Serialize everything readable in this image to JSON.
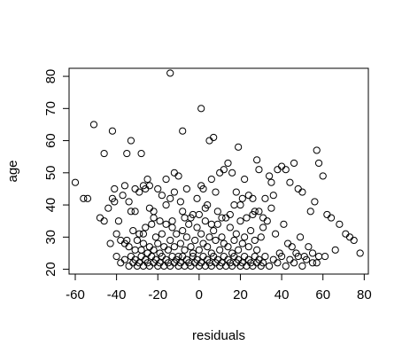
{
  "chart_data": {
    "type": "scatter",
    "title": "",
    "xlabel": "residuals",
    "ylabel": "age",
    "xlim": [
      -63,
      82
    ],
    "ylim": [
      18.5,
      82.5
    ],
    "xticks": [
      -60,
      -40,
      -20,
      0,
      20,
      40,
      60,
      80
    ],
    "yticks": [
      20,
      30,
      40,
      50,
      60,
      70,
      80
    ],
    "grid": false,
    "legend": "none",
    "marker": "open-circle",
    "points": [
      [
        -14,
        81
      ],
      [
        1,
        70
      ],
      [
        -51,
        65
      ],
      [
        -42,
        63
      ],
      [
        -8,
        63
      ],
      [
        5,
        60
      ],
      [
        -33,
        60
      ],
      [
        7,
        61
      ],
      [
        -46,
        56
      ],
      [
        -35,
        56
      ],
      [
        -28,
        56
      ],
      [
        19,
        58
      ],
      [
        -60,
        47
      ],
      [
        -56,
        42
      ],
      [
        -54,
        42
      ],
      [
        -44,
        39
      ],
      [
        -42,
        42
      ],
      [
        -41,
        45
      ],
      [
        -37,
        43
      ],
      [
        -36,
        46
      ],
      [
        -34,
        41
      ],
      [
        -33,
        38
      ],
      [
        -31,
        45
      ],
      [
        -31,
        38
      ],
      [
        -29,
        44
      ],
      [
        -27,
        46
      ],
      [
        -26,
        45
      ],
      [
        -24,
        46
      ],
      [
        -24,
        39
      ],
      [
        -22,
        38
      ],
      [
        -20,
        45
      ],
      [
        -18,
        43
      ],
      [
        -16,
        48
      ],
      [
        -14,
        42
      ],
      [
        -12,
        50
      ],
      [
        -12,
        44
      ],
      [
        -10,
        49
      ],
      [
        -8,
        38
      ],
      [
        -6,
        45
      ],
      [
        -3,
        37
      ],
      [
        -1,
        42
      ],
      [
        1,
        46
      ],
      [
        2,
        45
      ],
      [
        4,
        40
      ],
      [
        6,
        48
      ],
      [
        8,
        44
      ],
      [
        10,
        50
      ],
      [
        12,
        51
      ],
      [
        14,
        53
      ],
      [
        16,
        50
      ],
      [
        18,
        44
      ],
      [
        20,
        40
      ],
      [
        22,
        48
      ],
      [
        24,
        43
      ],
      [
        26,
        42
      ],
      [
        28,
        54
      ],
      [
        29,
        51
      ],
      [
        32,
        42
      ],
      [
        34,
        49
      ],
      [
        35,
        47
      ],
      [
        36,
        43
      ],
      [
        38,
        51
      ],
      [
        40,
        52
      ],
      [
        42,
        51
      ],
      [
        44,
        47
      ],
      [
        46,
        53
      ],
      [
        48,
        45
      ],
      [
        50,
        44
      ],
      [
        54,
        38
      ],
      [
        56,
        41
      ],
      [
        57,
        57
      ],
      [
        58,
        53
      ],
      [
        60,
        49
      ],
      [
        62,
        37
      ],
      [
        64,
        36
      ],
      [
        68,
        34
      ],
      [
        71,
        31
      ],
      [
        73,
        30
      ],
      [
        75,
        29
      ],
      [
        78,
        25
      ],
      [
        -48,
        36
      ],
      [
        -46,
        35
      ],
      [
        -43,
        28
      ],
      [
        -40,
        31
      ],
      [
        -38,
        29
      ],
      [
        -36,
        28
      ],
      [
        -35,
        29
      ],
      [
        -34,
        27
      ],
      [
        -32,
        32
      ],
      [
        -31,
        26
      ],
      [
        -30,
        29
      ],
      [
        -29,
        31
      ],
      [
        -28,
        26
      ],
      [
        -27,
        28
      ],
      [
        -26,
        33
      ],
      [
        -25,
        25
      ],
      [
        -24,
        27
      ],
      [
        -23,
        34
      ],
      [
        -22,
        26
      ],
      [
        -21,
        30
      ],
      [
        -20,
        28
      ],
      [
        -19,
        25
      ],
      [
        -18,
        31
      ],
      [
        -17,
        27
      ],
      [
        -16,
        34
      ],
      [
        -15,
        26
      ],
      [
        -14,
        29
      ],
      [
        -13,
        35
      ],
      [
        -12,
        27
      ],
      [
        -11,
        31
      ],
      [
        -10,
        24
      ],
      [
        -9,
        28
      ],
      [
        -8,
        32
      ],
      [
        -7,
        26
      ],
      [
        -6,
        30
      ],
      [
        -5,
        34
      ],
      [
        -4,
        27
      ],
      [
        -3,
        25
      ],
      [
        -2,
        29
      ],
      [
        -1,
        33
      ],
      [
        0,
        26
      ],
      [
        1,
        31
      ],
      [
        2,
        28
      ],
      [
        3,
        35
      ],
      [
        4,
        27
      ],
      [
        5,
        30
      ],
      [
        6,
        25
      ],
      [
        7,
        32
      ],
      [
        8,
        29
      ],
      [
        9,
        34
      ],
      [
        10,
        26
      ],
      [
        11,
        30
      ],
      [
        12,
        28
      ],
      [
        13,
        36
      ],
      [
        14,
        27
      ],
      [
        15,
        33
      ],
      [
        16,
        25
      ],
      [
        17,
        29
      ],
      [
        18,
        31
      ],
      [
        19,
        26
      ],
      [
        20,
        35
      ],
      [
        21,
        28
      ],
      [
        22,
        30
      ],
      [
        23,
        36
      ],
      [
        24,
        27
      ],
      [
        25,
        32
      ],
      [
        26,
        37
      ],
      [
        27,
        29
      ],
      [
        28,
        26
      ],
      [
        29,
        38
      ],
      [
        30,
        30
      ],
      [
        31,
        33
      ],
      [
        33,
        35
      ],
      [
        35,
        39
      ],
      [
        37,
        31
      ],
      [
        39,
        25
      ],
      [
        41,
        34
      ],
      [
        43,
        28
      ],
      [
        45,
        27
      ],
      [
        47,
        25
      ],
      [
        49,
        30
      ],
      [
        51,
        24
      ],
      [
        53,
        27
      ],
      [
        55,
        25
      ],
      [
        58,
        24
      ],
      [
        61,
        24
      ],
      [
        66,
        26
      ],
      [
        -40,
        24
      ],
      [
        -38,
        22
      ],
      [
        -36,
        23
      ],
      [
        -34,
        21
      ],
      [
        -33,
        24
      ],
      [
        -32,
        22
      ],
      [
        -31,
        23
      ],
      [
        -30,
        21
      ],
      [
        -29,
        22
      ],
      [
        -28,
        24
      ],
      [
        -27,
        21
      ],
      [
        -26,
        23
      ],
      [
        -25,
        22
      ],
      [
        -24,
        21
      ],
      [
        -23,
        24
      ],
      [
        -22,
        22
      ],
      [
        -21,
        23
      ],
      [
        -20,
        21
      ],
      [
        -19,
        22
      ],
      [
        -18,
        24
      ],
      [
        -17,
        21
      ],
      [
        -16,
        23
      ],
      [
        -15,
        22
      ],
      [
        -14,
        21
      ],
      [
        -13,
        24
      ],
      [
        -12,
        22
      ],
      [
        -11,
        23
      ],
      [
        -10,
        21
      ],
      [
        -9,
        22
      ],
      [
        -8,
        24
      ],
      [
        -7,
        21
      ],
      [
        -6,
        23
      ],
      [
        -5,
        22
      ],
      [
        -4,
        21
      ],
      [
        -3,
        24
      ],
      [
        -2,
        22
      ],
      [
        -1,
        23
      ],
      [
        0,
        21
      ],
      [
        1,
        22
      ],
      [
        2,
        24
      ],
      [
        3,
        21
      ],
      [
        4,
        23
      ],
      [
        5,
        22
      ],
      [
        6,
        21
      ],
      [
        7,
        24
      ],
      [
        8,
        22
      ],
      [
        9,
        23
      ],
      [
        10,
        21
      ],
      [
        11,
        22
      ],
      [
        12,
        24
      ],
      [
        13,
        21
      ],
      [
        14,
        23
      ],
      [
        15,
        22
      ],
      [
        16,
        21
      ],
      [
        17,
        24
      ],
      [
        18,
        22
      ],
      [
        19,
        23
      ],
      [
        20,
        21
      ],
      [
        21,
        22
      ],
      [
        22,
        24
      ],
      [
        23,
        21
      ],
      [
        24,
        23
      ],
      [
        25,
        22
      ],
      [
        26,
        21
      ],
      [
        27,
        24
      ],
      [
        28,
        22
      ],
      [
        29,
        23
      ],
      [
        30,
        21
      ],
      [
        31,
        22
      ],
      [
        32,
        24
      ],
      [
        34,
        21
      ],
      [
        36,
        23
      ],
      [
        38,
        22
      ],
      [
        40,
        24
      ],
      [
        42,
        21
      ],
      [
        44,
        23
      ],
      [
        46,
        22
      ],
      [
        48,
        24
      ],
      [
        50,
        21
      ],
      [
        52,
        23
      ],
      [
        55,
        22
      ],
      [
        57,
        22
      ],
      [
        -22,
        36
      ],
      [
        -16,
        40
      ],
      [
        -9,
        41
      ],
      [
        -4,
        36
      ],
      [
        3,
        39
      ],
      [
        9,
        38
      ],
      [
        15,
        37
      ],
      [
        21,
        42
      ],
      [
        27,
        38
      ],
      [
        31,
        36
      ],
      [
        -25,
        48
      ],
      [
        -41,
        41
      ],
      [
        -39,
        35
      ],
      [
        -27,
        31
      ],
      [
        -19,
        35
      ],
      [
        -13,
        33
      ],
      [
        -7,
        36
      ],
      [
        0,
        37
      ],
      [
        6,
        34
      ],
      [
        11,
        36
      ],
      [
        17,
        40
      ]
    ]
  }
}
